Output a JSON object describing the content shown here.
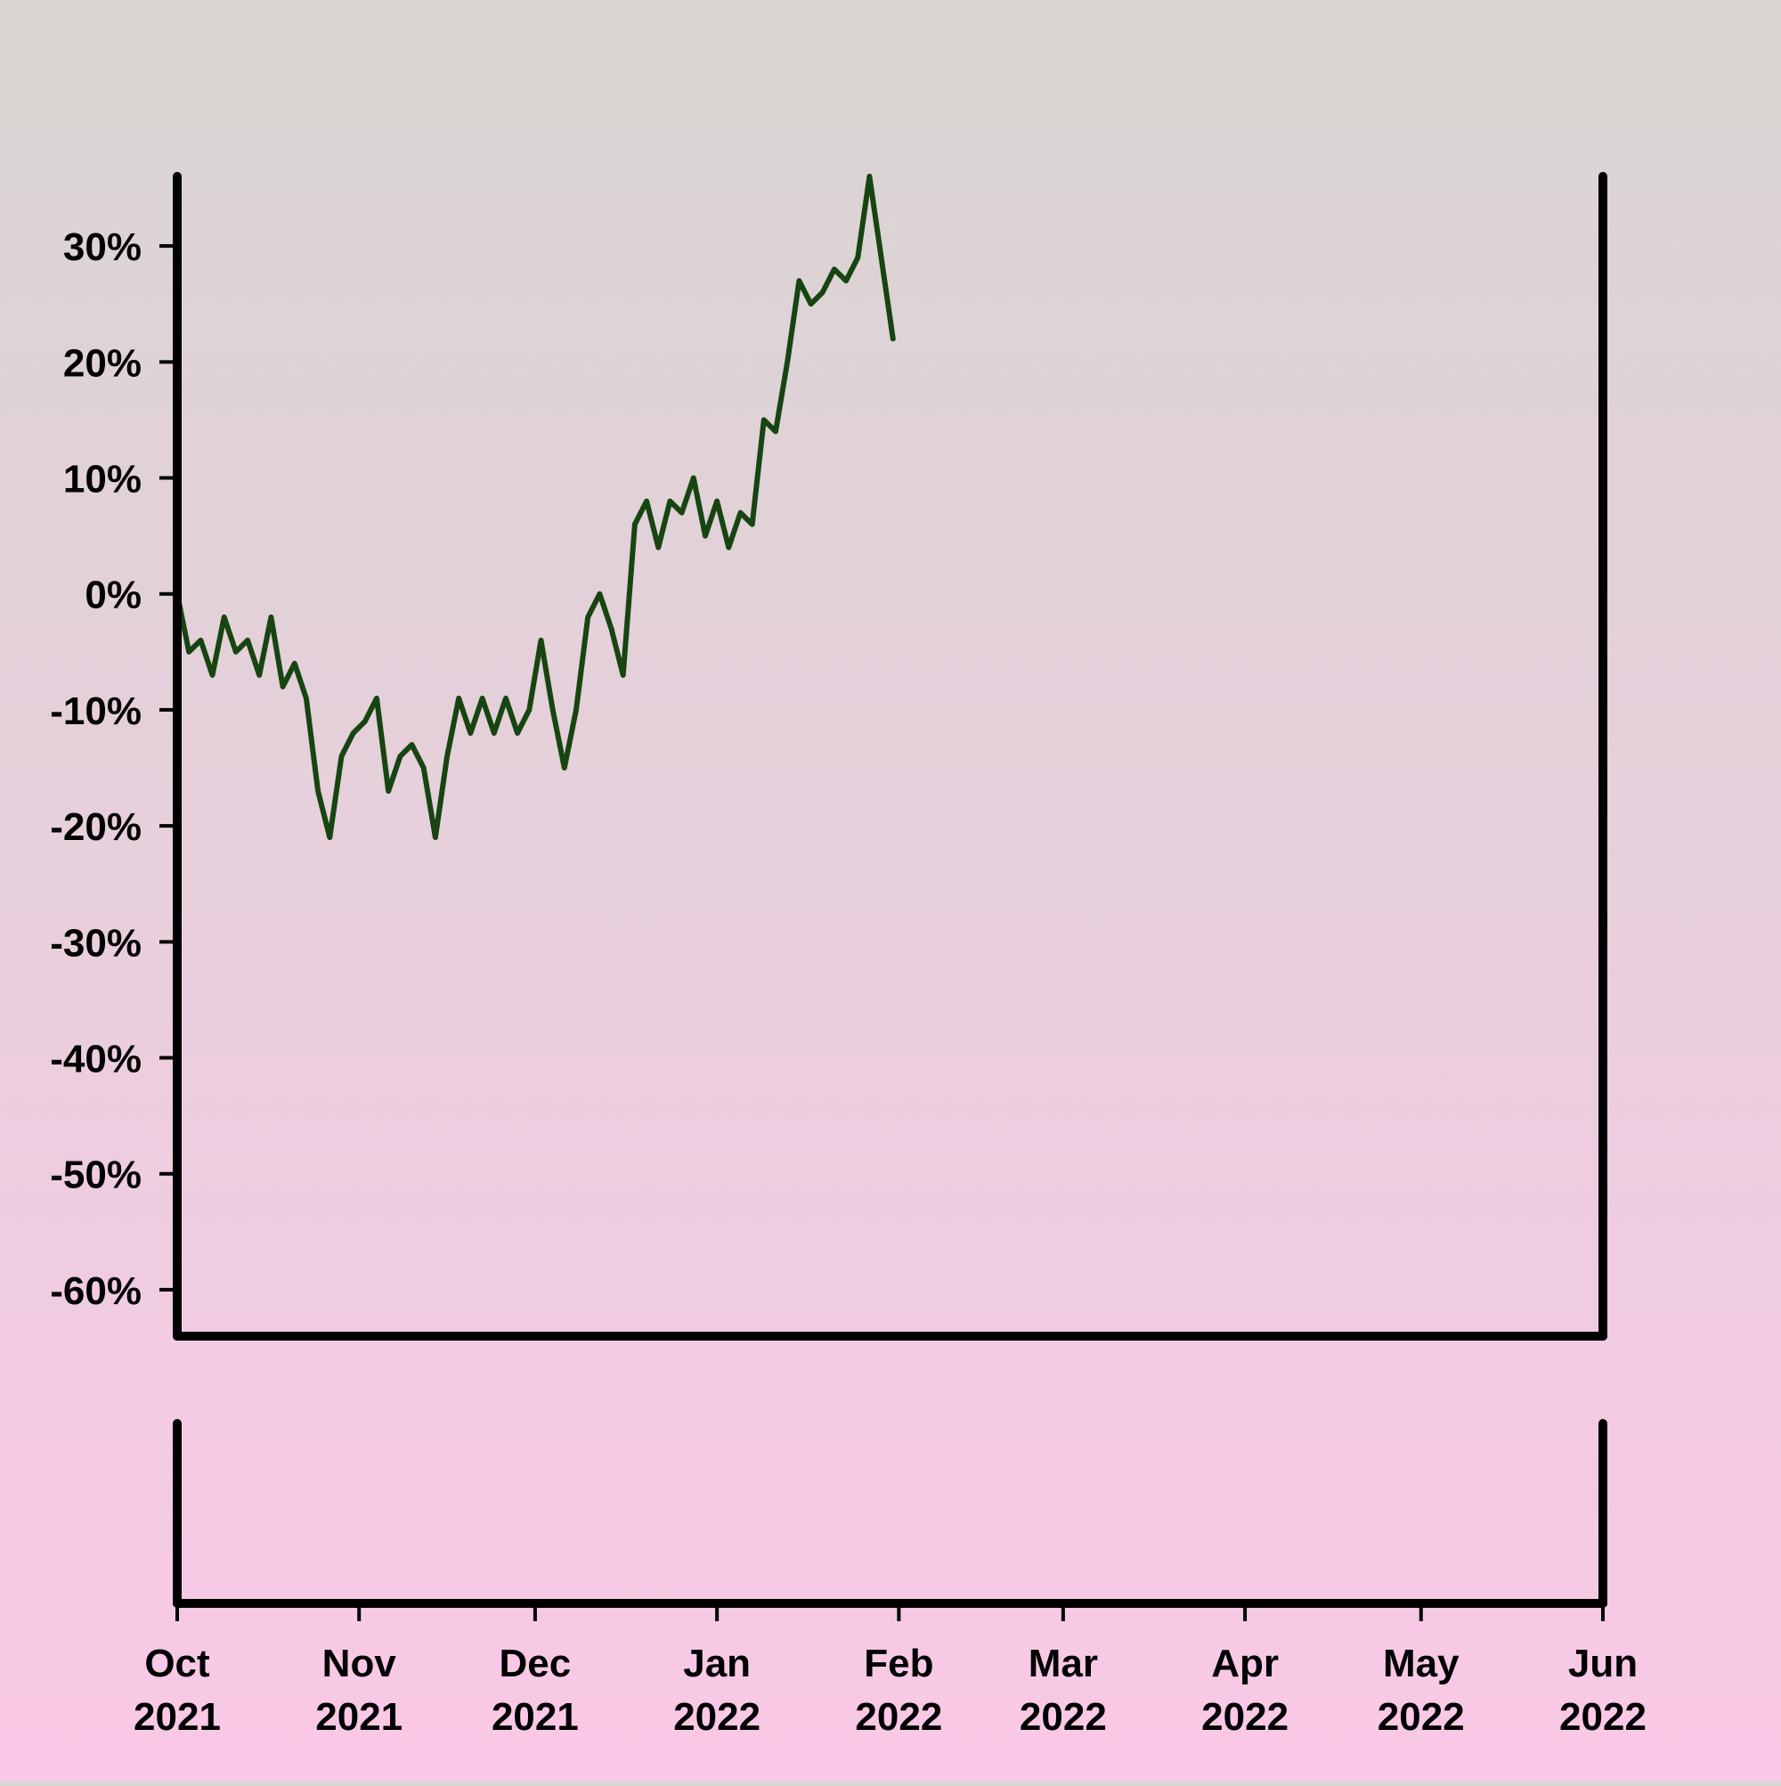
{
  "chart_data": {
    "type": "line",
    "title": "",
    "xlabel": "",
    "ylabel": "",
    "x_range": [
      "2021-10-01",
      "2022-06-01"
    ],
    "ylim": [
      -64,
      36
    ],
    "y_ticks": [
      -60,
      -50,
      -40,
      -30,
      -20,
      -10,
      0,
      10,
      20,
      30
    ],
    "y_tick_labels": [
      "-60%",
      "-50%",
      "-40%",
      "-30%",
      "-20%",
      "-10%",
      "0%",
      "10%",
      "20%",
      "30%"
    ],
    "x_ticks": [
      {
        "date": "2021-10-01",
        "month": "Oct",
        "year": "2021"
      },
      {
        "date": "2021-11-01",
        "month": "Nov",
        "year": "2021"
      },
      {
        "date": "2021-12-01",
        "month": "Dec",
        "year": "2021"
      },
      {
        "date": "2022-01-01",
        "month": "Jan",
        "year": "2022"
      },
      {
        "date": "2022-02-01",
        "month": "Feb",
        "year": "2022"
      },
      {
        "date": "2022-03-01",
        "month": "Mar",
        "year": "2022"
      },
      {
        "date": "2022-04-01",
        "month": "Apr",
        "year": "2022"
      },
      {
        "date": "2022-05-01",
        "month": "May",
        "year": "2022"
      },
      {
        "date": "2022-06-01",
        "month": "Jun",
        "year": "2022"
      }
    ],
    "line_color": "#174511",
    "axis_color": "#000000",
    "grid": false,
    "series": [
      {
        "values": [
          [
            "2021-10-01",
            0
          ],
          [
            "2021-10-03",
            -5
          ],
          [
            "2021-10-05",
            -4
          ],
          [
            "2021-10-07",
            -7
          ],
          [
            "2021-10-09",
            -2
          ],
          [
            "2021-10-11",
            -5
          ],
          [
            "2021-10-13",
            -4
          ],
          [
            "2021-10-15",
            -7
          ],
          [
            "2021-10-17",
            -2
          ],
          [
            "2021-10-19",
            -8
          ],
          [
            "2021-10-21",
            -6
          ],
          [
            "2021-10-23",
            -9
          ],
          [
            "2021-10-25",
            -17
          ],
          [
            "2021-10-27",
            -21
          ],
          [
            "2021-10-29",
            -14
          ],
          [
            "2021-10-31",
            -12
          ],
          [
            "2021-11-02",
            -11
          ],
          [
            "2021-11-04",
            -9
          ],
          [
            "2021-11-06",
            -17
          ],
          [
            "2021-11-08",
            -14
          ],
          [
            "2021-11-10",
            -13
          ],
          [
            "2021-11-12",
            -15
          ],
          [
            "2021-11-14",
            -21
          ],
          [
            "2021-11-16",
            -14
          ],
          [
            "2021-11-18",
            -9
          ],
          [
            "2021-11-20",
            -12
          ],
          [
            "2021-11-22",
            -9
          ],
          [
            "2021-11-24",
            -12
          ],
          [
            "2021-11-26",
            -9
          ],
          [
            "2021-11-28",
            -12
          ],
          [
            "2021-11-30",
            -10
          ],
          [
            "2021-12-02",
            -4
          ],
          [
            "2021-12-04",
            -10
          ],
          [
            "2021-12-06",
            -15
          ],
          [
            "2021-12-08",
            -10
          ],
          [
            "2021-12-10",
            -2
          ],
          [
            "2021-12-12",
            0
          ],
          [
            "2021-12-14",
            -3
          ],
          [
            "2021-12-16",
            -7
          ],
          [
            "2021-12-18",
            6
          ],
          [
            "2021-12-20",
            8
          ],
          [
            "2021-12-22",
            4
          ],
          [
            "2021-12-24",
            8
          ],
          [
            "2021-12-26",
            7
          ],
          [
            "2021-12-28",
            10
          ],
          [
            "2021-12-30",
            5
          ],
          [
            "2022-01-01",
            8
          ],
          [
            "2022-01-03",
            4
          ],
          [
            "2022-01-05",
            7
          ],
          [
            "2022-01-07",
            6
          ],
          [
            "2022-01-09",
            15
          ],
          [
            "2022-01-11",
            14
          ],
          [
            "2022-01-13",
            20
          ],
          [
            "2022-01-15",
            27
          ],
          [
            "2022-01-17",
            25
          ],
          [
            "2022-01-19",
            26
          ],
          [
            "2022-01-21",
            28
          ],
          [
            "2022-01-23",
            27
          ],
          [
            "2022-01-25",
            29
          ],
          [
            "2022-01-27",
            36
          ],
          [
            "2022-01-29",
            29
          ],
          [
            "2022-01-31",
            22
          ]
        ]
      }
    ]
  }
}
